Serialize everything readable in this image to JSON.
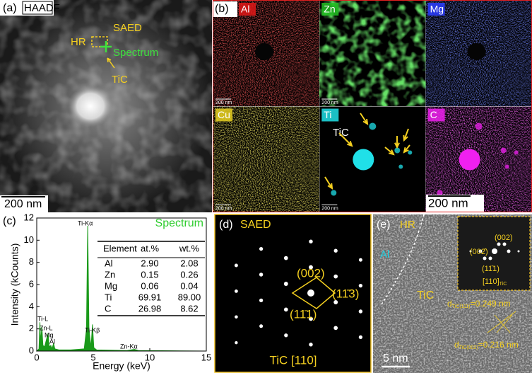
{
  "figure": {
    "a": {
      "label": "(a)",
      "title": "HAADF",
      "saed": "SAED",
      "hr": "HR",
      "spectrum": "Spectrum",
      "tic": "TiC",
      "scale_bar": "200 nm"
    },
    "b": {
      "label": "(b)",
      "tic": "TiC",
      "scale_bar": "200 nm",
      "maps": [
        {
          "element": "Al",
          "color": "#e01818",
          "scale_bar": "200 nm"
        },
        {
          "element": "Zn",
          "color": "#22c022",
          "scale_bar": "200 nm"
        },
        {
          "element": "Mg",
          "color": "#2a3cff"
        },
        {
          "element": "Cu",
          "color": "#e8d020",
          "scale_bar": "200 nm"
        },
        {
          "element": "Ti",
          "color": "#20e0e8",
          "scale_bar": "200 nm"
        },
        {
          "element": "C",
          "color": "#f020f0"
        }
      ]
    },
    "c": {
      "label": "(c)",
      "peaks": [
        "Ti-Kα",
        "Ti-L",
        "Zn-L",
        "Mg",
        "Al",
        "Ti-Kβ",
        "Zn-Kα"
      ],
      "table": {
        "header": [
          "Element",
          "at.%",
          "wt.%"
        ],
        "rows": [
          [
            "Al",
            "2.90",
            "2.08"
          ],
          [
            "Zn",
            "0.15",
            "0.26"
          ],
          [
            "Mg",
            "0.06",
            "0.04"
          ],
          [
            "Ti",
            "69.91",
            "89.00"
          ],
          [
            "C",
            "26.98",
            "8.62"
          ]
        ]
      }
    },
    "d": {
      "label": "(d)",
      "title": "SAED",
      "spots": [
        "(002)",
        "(11̄3)",
        "(11̄1)"
      ],
      "zone": "TiC [110]"
    },
    "e": {
      "label": "(e)",
      "hr": "HR",
      "al": "Al",
      "tic": "TiC",
      "fft": [
        "(002)",
        "(002̄)",
        "(11̄1)"
      ],
      "zone": "[110]",
      "zone_sub": "TiC",
      "spacings": [
        {
          "d": "d",
          "sub": "TiC(111)",
          "rest": "=0.249 nm"
        },
        {
          "d": "d",
          "sub": "TiC(002)",
          "rest": "=0.216 nm"
        }
      ],
      "scale_bar": "5 nm"
    }
  },
  "chart_data": {
    "type": "area",
    "xlabel": "Energy (keV)",
    "ylabel": "Intensity (kCounts)",
    "x": [
      0,
      0.2,
      0.28,
      0.35,
      0.45,
      0.55,
      0.7,
      1.0,
      1.1,
      1.25,
      1.35,
      1.49,
      1.6,
      2.0,
      3.0,
      4.2,
      4.4,
      4.51,
      4.62,
      4.8,
      4.93,
      5.05,
      5.3,
      8.0,
      8.63,
      9.0,
      12,
      15
    ],
    "series": [
      {
        "name": "Spectrum",
        "color": "#1a9a1a",
        "values": [
          0,
          0.2,
          2.6,
          0.8,
          2.2,
          0.5,
          0.4,
          1.6,
          0.4,
          0.5,
          0.2,
          0.7,
          0.2,
          0.1,
          0.1,
          0.2,
          2,
          11.3,
          2,
          0.3,
          2.4,
          0.3,
          0.1,
          0.05,
          0.15,
          0.05,
          0.02,
          0
        ]
      }
    ],
    "xlim": [
      0,
      15
    ],
    "xticks": [
      0,
      5,
      10,
      15
    ],
    "ylim": [
      0,
      12
    ],
    "yticks": [
      0,
      2,
      4,
      6,
      8,
      10,
      12
    ]
  }
}
